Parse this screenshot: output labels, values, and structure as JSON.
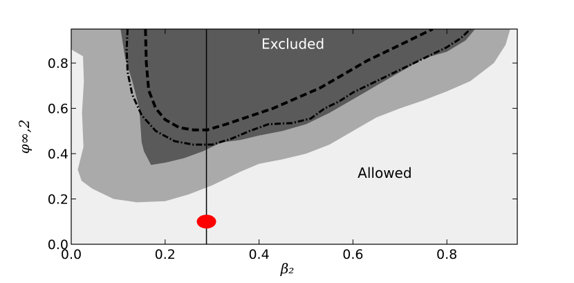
{
  "chart_data": {
    "type": "area",
    "xlabel": "β₂",
    "ylabel": "φ∞,2",
    "xlim": [
      0.0,
      0.95
    ],
    "ylim": [
      0.0,
      0.95
    ],
    "xticks": [
      "0.0",
      "0.2",
      "0.4",
      "0.6",
      "0.8"
    ],
    "yticks": [
      "0.0",
      "0.2",
      "0.4",
      "0.6",
      "0.8"
    ],
    "grid": false,
    "background_color": "#efefef",
    "annotations": [
      {
        "text": "Excluded",
        "x": 0.405,
        "y": 0.885,
        "color": "#ffffff"
      },
      {
        "text": "Allowed",
        "x": 0.61,
        "y": 0.315,
        "color": "#000000"
      }
    ],
    "reference_line_x": 0.288,
    "marker_point": {
      "x": 0.288,
      "y": 0.1,
      "color": "#ff0000"
    },
    "regions": [
      {
        "color": "#aaaaaa",
        "boundary": [
          [
            0.0,
            0.95
          ],
          [
            0.0,
            0.86
          ],
          [
            0.025,
            0.83
          ],
          [
            0.027,
            0.72
          ],
          [
            0.023,
            0.58
          ],
          [
            0.026,
            0.43
          ],
          [
            0.014,
            0.33
          ],
          [
            0.022,
            0.28
          ],
          [
            0.045,
            0.245
          ],
          [
            0.09,
            0.2
          ],
          [
            0.14,
            0.185
          ],
          [
            0.2,
            0.19
          ],
          [
            0.25,
            0.22
          ],
          [
            0.3,
            0.26
          ],
          [
            0.33,
            0.29
          ],
          [
            0.36,
            0.32
          ],
          [
            0.4,
            0.355
          ],
          [
            0.45,
            0.375
          ],
          [
            0.5,
            0.4
          ],
          [
            0.55,
            0.44
          ],
          [
            0.6,
            0.5
          ],
          [
            0.65,
            0.56
          ],
          [
            0.7,
            0.6
          ],
          [
            0.75,
            0.635
          ],
          [
            0.8,
            0.675
          ],
          [
            0.85,
            0.72
          ],
          [
            0.9,
            0.8
          ],
          [
            0.925,
            0.88
          ],
          [
            0.935,
            0.95
          ]
        ]
      },
      {
        "color": "#5a5a5a",
        "boundary": [
          [
            0.105,
            0.95
          ],
          [
            0.115,
            0.82
          ],
          [
            0.13,
            0.72
          ],
          [
            0.145,
            0.6
          ],
          [
            0.15,
            0.45
          ],
          [
            0.155,
            0.41
          ],
          [
            0.17,
            0.35
          ],
          [
            0.2,
            0.36
          ],
          [
            0.24,
            0.38
          ],
          [
            0.28,
            0.41
          ],
          [
            0.32,
            0.45
          ],
          [
            0.36,
            0.46
          ],
          [
            0.4,
            0.48
          ],
          [
            0.45,
            0.5
          ],
          [
            0.5,
            0.53
          ],
          [
            0.55,
            0.58
          ],
          [
            0.6,
            0.64
          ],
          [
            0.65,
            0.7
          ],
          [
            0.7,
            0.76
          ],
          [
            0.75,
            0.82
          ],
          [
            0.8,
            0.85
          ],
          [
            0.84,
            0.9
          ],
          [
            0.86,
            0.95
          ]
        ]
      }
    ],
    "series": [
      {
        "style": "dashed",
        "values": [
          [
            0.158,
            0.95
          ],
          [
            0.16,
            0.8
          ],
          [
            0.165,
            0.68
          ],
          [
            0.18,
            0.6
          ],
          [
            0.2,
            0.55
          ],
          [
            0.23,
            0.515
          ],
          [
            0.26,
            0.505
          ],
          [
            0.29,
            0.505
          ],
          [
            0.33,
            0.53
          ],
          [
            0.38,
            0.565
          ],
          [
            0.43,
            0.6
          ],
          [
            0.48,
            0.645
          ],
          [
            0.53,
            0.69
          ],
          [
            0.58,
            0.75
          ],
          [
            0.63,
            0.81
          ],
          [
            0.68,
            0.86
          ],
          [
            0.72,
            0.9
          ],
          [
            0.75,
            0.93
          ],
          [
            0.77,
            0.95
          ]
        ]
      },
      {
        "style": "dashdot",
        "values": [
          [
            0.12,
            0.95
          ],
          [
            0.118,
            0.86
          ],
          [
            0.12,
            0.76
          ],
          [
            0.13,
            0.66
          ],
          [
            0.15,
            0.57
          ],
          [
            0.18,
            0.5
          ],
          [
            0.22,
            0.455
          ],
          [
            0.26,
            0.44
          ],
          [
            0.3,
            0.44
          ],
          [
            0.34,
            0.465
          ],
          [
            0.38,
            0.5
          ],
          [
            0.42,
            0.53
          ],
          [
            0.47,
            0.535
          ],
          [
            0.51,
            0.555
          ],
          [
            0.54,
            0.6
          ],
          [
            0.57,
            0.63
          ],
          [
            0.6,
            0.67
          ],
          [
            0.65,
            0.72
          ],
          [
            0.7,
            0.77
          ],
          [
            0.75,
            0.82
          ],
          [
            0.8,
            0.87
          ],
          [
            0.83,
            0.91
          ],
          [
            0.85,
            0.95
          ]
        ]
      }
    ]
  }
}
